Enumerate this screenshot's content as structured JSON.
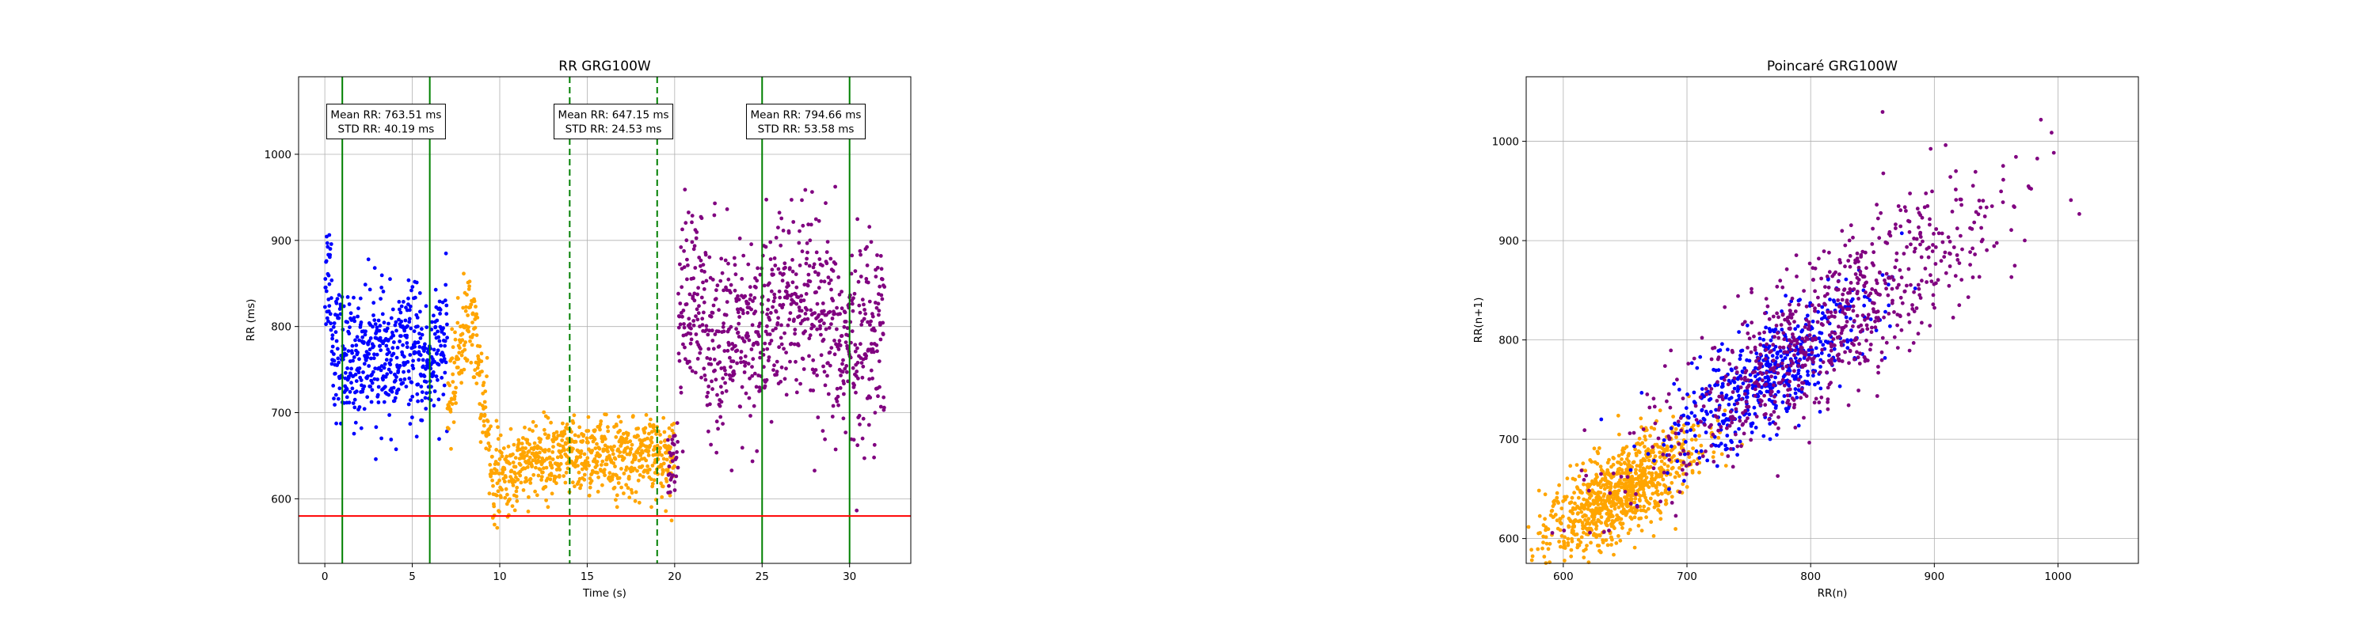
{
  "colors": {
    "segment1": "#0000ff",
    "segment2": "#ffa500",
    "segment3": "#800080",
    "segment_line_solid": "#008000",
    "threshold_line": "#ff0000",
    "grid": "#b0b0b0"
  },
  "chart_data": [
    {
      "type": "scatter",
      "title": "RR GRG100W",
      "xlabel": "Time (s)",
      "ylabel": "RR (ms)",
      "xlim": [
        -1.5,
        33.5
      ],
      "ylim": [
        525,
        1090
      ],
      "xticks": [
        0,
        5,
        10,
        15,
        20,
        25,
        30
      ],
      "yticks": [
        600,
        700,
        800,
        900,
        1000
      ],
      "grid": true,
      "threshold_y": 580,
      "vlines": [
        {
          "x": 1,
          "style": "solid"
        },
        {
          "x": 6,
          "style": "solid"
        },
        {
          "x": 14,
          "style": "dashed"
        },
        {
          "x": 19,
          "style": "dashed"
        },
        {
          "x": 25,
          "style": "solid"
        },
        {
          "x": 30,
          "style": "solid"
        }
      ],
      "annotations": [
        {
          "x": 3.5,
          "y": 1038,
          "line1": "Mean RR: 763.51 ms",
          "line2": "STD RR: 40.19 ms"
        },
        {
          "x": 16.5,
          "y": 1038,
          "line1": "Mean RR: 647.15 ms",
          "line2": "STD RR: 24.53 ms"
        },
        {
          "x": 27.5,
          "y": 1038,
          "line1": "Mean RR: 794.66 ms",
          "line2": "STD RR: 53.58 ms"
        }
      ],
      "series": [
        {
          "color_key": "segment1",
          "x_range": [
            0,
            7
          ],
          "mean": 763.51,
          "std": 40.19
        },
        {
          "color_key": "segment2",
          "x_range": [
            7,
            20
          ],
          "mean": 647.15,
          "std": 24.53
        },
        {
          "color_key": "segment3",
          "x_range": [
            20,
            32
          ],
          "mean": 794.66,
          "std": 53.58
        }
      ]
    },
    {
      "type": "scatter",
      "title": "Poincaré GRG100W",
      "xlabel": "RR(n)",
      "ylabel": "RR(n+1)",
      "xlim": [
        570,
        1065
      ],
      "ylim": [
        575,
        1065
      ],
      "xticks": [
        600,
        700,
        800,
        900,
        1000
      ],
      "yticks": [
        600,
        700,
        800,
        900,
        1000
      ],
      "grid": true
    }
  ]
}
